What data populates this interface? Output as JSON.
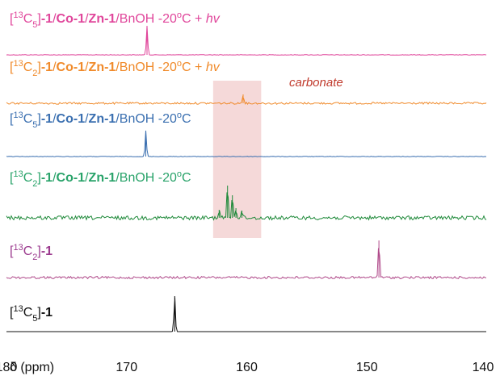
{
  "chart_data": {
    "type": "line",
    "title": "",
    "xlabel": "δ (ppm)",
    "ylabel": "",
    "x_axis": {
      "min": 140,
      "max": 180,
      "reversed": true,
      "ticks": [
        180,
        170,
        160,
        150,
        140
      ]
    },
    "highlight_region": {
      "x_range": [
        158.8,
        162.8
      ],
      "label": "carbonate",
      "color": "#f2cfd0",
      "label_color": "#c0392b"
    },
    "series": [
      {
        "label_parts": [
          {
            "t": "[",
            "bold": false,
            "color": "#e0469b"
          },
          {
            "t": "13",
            "bold": false,
            "sup": true,
            "color": "#e0469b"
          },
          {
            "t": "C",
            "bold": false,
            "color": "#e0469b"
          },
          {
            "t": "5",
            "bold": false,
            "sub": true,
            "color": "#e0469b"
          },
          {
            "t": "]",
            "bold": false,
            "color": "#e0469b"
          },
          {
            "t": "-1",
            "bold": true,
            "color": "#e0469b"
          },
          {
            "t": "/",
            "bold": false,
            "color": "#e0469b"
          },
          {
            "t": "Co-1",
            "bold": true,
            "color": "#e0469b"
          },
          {
            "t": "/",
            "bold": false,
            "color": "#e0469b"
          },
          {
            "t": "Zn-1",
            "bold": true,
            "color": "#e0469b"
          },
          {
            "t": "/BnOH -20",
            "bold": false,
            "color": "#e0469b"
          },
          {
            "t": "o",
            "bold": false,
            "sup": true,
            "color": "#e0469b"
          },
          {
            "t": "C + ",
            "bold": false,
            "color": "#e0469b"
          },
          {
            "t": "hv",
            "bold": false,
            "italic": true,
            "color": "#e0469b"
          }
        ],
        "color": "#e0469b",
        "noise": 0.3,
        "peaks": [
          {
            "x": 168.3,
            "height": 36
          }
        ]
      },
      {
        "label_parts": [
          {
            "t": "[",
            "bold": false,
            "color": "#f08a2a"
          },
          {
            "t": "13",
            "bold": false,
            "sup": true,
            "color": "#f08a2a"
          },
          {
            "t": "C",
            "bold": false,
            "color": "#f08a2a"
          },
          {
            "t": "2",
            "bold": false,
            "sub": true,
            "color": "#f08a2a"
          },
          {
            "t": "]",
            "bold": false,
            "color": "#f08a2a"
          },
          {
            "t": "-1",
            "bold": true,
            "color": "#f08a2a"
          },
          {
            "t": "/",
            "bold": false,
            "color": "#f08a2a"
          },
          {
            "t": "Co-1",
            "bold": true,
            "color": "#f08a2a"
          },
          {
            "t": "/",
            "bold": false,
            "color": "#f08a2a"
          },
          {
            "t": "Zn-1",
            "bold": true,
            "color": "#f08a2a"
          },
          {
            "t": "/BnOH -20",
            "bold": false,
            "color": "#f08a2a"
          },
          {
            "t": "o",
            "bold": false,
            "sup": true,
            "color": "#f08a2a"
          },
          {
            "t": "C + ",
            "bold": false,
            "color": "#f08a2a"
          },
          {
            "t": "hv",
            "bold": false,
            "italic": true,
            "color": "#f08a2a"
          }
        ],
        "color": "#f08a2a",
        "noise": 1.2,
        "peaks": [
          {
            "x": 160.3,
            "height": 11
          }
        ]
      },
      {
        "label_parts": [
          {
            "t": "[",
            "bold": false,
            "color": "#3a6fb0"
          },
          {
            "t": "13",
            "bold": false,
            "sup": true,
            "color": "#3a6fb0"
          },
          {
            "t": "C",
            "bold": false,
            "color": "#3a6fb0"
          },
          {
            "t": "5",
            "bold": false,
            "sub": true,
            "color": "#3a6fb0"
          },
          {
            "t": "]",
            "bold": false,
            "color": "#3a6fb0"
          },
          {
            "t": "-1",
            "bold": true,
            "color": "#3a6fb0"
          },
          {
            "t": "/",
            "bold": false,
            "color": "#3a6fb0"
          },
          {
            "t": "Co-1",
            "bold": true,
            "color": "#3a6fb0"
          },
          {
            "t": "/",
            "bold": false,
            "color": "#3a6fb0"
          },
          {
            "t": "Zn-1",
            "bold": true,
            "color": "#3a6fb0"
          },
          {
            "t": "/BnOH -20",
            "bold": false,
            "color": "#3a6fb0"
          },
          {
            "t": "o",
            "bold": false,
            "sup": true,
            "color": "#3a6fb0"
          },
          {
            "t": "C",
            "bold": false,
            "color": "#3a6fb0"
          }
        ],
        "color": "#3a6fb0",
        "noise": 0.3,
        "peaks": [
          {
            "x": 168.4,
            "height": 32
          }
        ]
      },
      {
        "label_parts": [
          {
            "t": "[",
            "bold": false,
            "color": "#29a36a"
          },
          {
            "t": "13",
            "bold": false,
            "sup": true,
            "color": "#29a36a"
          },
          {
            "t": "C",
            "bold": false,
            "color": "#29a36a"
          },
          {
            "t": "2",
            "bold": false,
            "sub": true,
            "color": "#29a36a"
          },
          {
            "t": "]",
            "bold": false,
            "color": "#29a36a"
          },
          {
            "t": "-1",
            "bold": true,
            "color": "#29a36a"
          },
          {
            "t": "/",
            "bold": false,
            "color": "#29a36a"
          },
          {
            "t": "Co-1",
            "bold": true,
            "color": "#29a36a"
          },
          {
            "t": "/",
            "bold": false,
            "color": "#29a36a"
          },
          {
            "t": "Zn-1",
            "bold": true,
            "color": "#29a36a"
          },
          {
            "t": "/BnOH -20",
            "bold": false,
            "color": "#29a36a"
          },
          {
            "t": "o",
            "bold": false,
            "sup": true,
            "color": "#29a36a"
          },
          {
            "t": "C",
            "bold": false,
            "color": "#29a36a"
          }
        ],
        "color": "#1f8a3a",
        "noise": 2.4,
        "peaks": [
          {
            "x": 161.6,
            "height": 40
          },
          {
            "x": 161.2,
            "height": 28
          },
          {
            "x": 162.3,
            "height": 10
          },
          {
            "x": 160.9,
            "height": 12
          },
          {
            "x": 160.4,
            "height": 9
          }
        ]
      },
      {
        "label_parts": [
          {
            "t": "[",
            "bold": false,
            "color": "#9b3a8e"
          },
          {
            "t": "13",
            "bold": false,
            "sup": true,
            "color": "#9b3a8e"
          },
          {
            "t": "C",
            "bold": false,
            "color": "#9b3a8e"
          },
          {
            "t": "2",
            "bold": false,
            "sub": true,
            "color": "#9b3a8e"
          },
          {
            "t": "]",
            "bold": false,
            "color": "#9b3a8e"
          },
          {
            "t": "-1",
            "bold": true,
            "color": "#9b3a8e"
          }
        ],
        "color": "#b04a8a",
        "noise": 1.4,
        "peaks": [
          {
            "x": 149.0,
            "height": 46
          }
        ]
      },
      {
        "label_parts": [
          {
            "t": "[",
            "bold": false,
            "color": "#111111"
          },
          {
            "t": "13",
            "bold": false,
            "sup": true,
            "color": "#111111"
          },
          {
            "t": "C",
            "bold": false,
            "color": "#111111"
          },
          {
            "t": "5",
            "bold": false,
            "sub": true,
            "color": "#111111"
          },
          {
            "t": "]",
            "bold": false,
            "color": "#111111"
          },
          {
            "t": "-1",
            "bold": true,
            "color": "#111111"
          }
        ],
        "color": "#111111",
        "noise": 0,
        "peaks": [
          {
            "x": 166.0,
            "height": 44
          }
        ]
      }
    ]
  }
}
